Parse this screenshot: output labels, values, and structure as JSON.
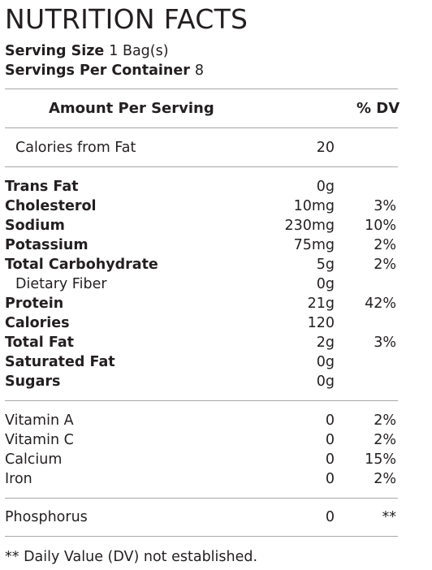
{
  "title": "NUTRITION FACTS",
  "serving_size": {
    "label": "Serving Size",
    "value": "1 Bag(s)"
  },
  "servings_per_container": {
    "label": "Servings Per Container",
    "value": "8"
  },
  "header": {
    "amount_per_serving": "Amount Per Serving",
    "dv": "% DV"
  },
  "calories_from_fat": {
    "label": "Calories from Fat",
    "amount": "20"
  },
  "nutrients": [
    {
      "name": "Trans Fat",
      "amount": "0g",
      "dv": ""
    },
    {
      "name": "Cholesterol",
      "amount": "10mg",
      "dv": "3%"
    },
    {
      "name": "Sodium",
      "amount": "230mg",
      "dv": "10%"
    },
    {
      "name": "Potassium",
      "amount": "75mg",
      "dv": "2%"
    },
    {
      "name": "Total Carbohydrate",
      "amount": "5g",
      "dv": "2%"
    },
    {
      "name": "Dietary Fiber",
      "amount": "0g",
      "dv": ""
    },
    {
      "name": "Protein",
      "amount": "21g",
      "dv": "42%"
    },
    {
      "name": "Calories",
      "amount": "120",
      "dv": ""
    },
    {
      "name": "Total Fat",
      "amount": "2g",
      "dv": "3%"
    },
    {
      "name": "Saturated Fat",
      "amount": "0g",
      "dv": ""
    },
    {
      "name": "Sugars",
      "amount": "0g",
      "dv": ""
    }
  ],
  "vitamins": [
    {
      "name": "Vitamin A",
      "amount": "0",
      "dv": "2%"
    },
    {
      "name": "Vitamin C",
      "amount": "0",
      "dv": "2%"
    },
    {
      "name": "Calcium",
      "amount": "0",
      "dv": "15%"
    },
    {
      "name": "Iron",
      "amount": "0",
      "dv": "2%"
    }
  ],
  "phosphorus": {
    "name": "Phosphorus",
    "amount": "0",
    "dv": "**"
  },
  "footnote": "** Daily Value (DV) not established."
}
